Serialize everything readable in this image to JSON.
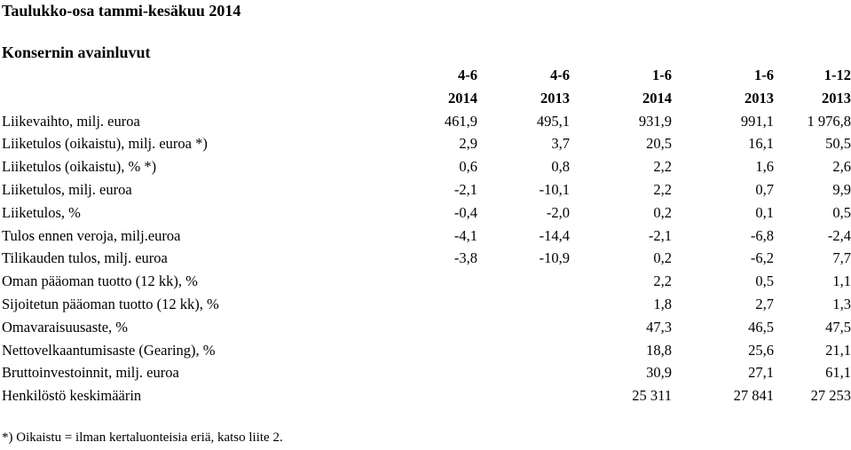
{
  "title": "Taulukko-osa tammi-kesäkuu 2014",
  "section_title": "Konsernin avainluvut",
  "table": {
    "header_row1": [
      "4-6",
      "4-6",
      "1-6",
      "1-6",
      "1-12"
    ],
    "header_row2": [
      "2014",
      "2013",
      "2014",
      "2013",
      "2013"
    ],
    "rows": [
      {
        "label": "Liikevaihto, milj. euroa",
        "values": [
          "461,9",
          "495,1",
          "931,9",
          "991,1",
          "1 976,8"
        ]
      },
      {
        "label": "Liiketulos (oikaistu), milj. euroa *)",
        "values": [
          "2,9",
          "3,7",
          "20,5",
          "16,1",
          "50,5"
        ]
      },
      {
        "label": "Liiketulos (oikaistu), % *)",
        "values": [
          "0,6",
          "0,8",
          "2,2",
          "1,6",
          "2,6"
        ]
      },
      {
        "label": "Liiketulos, milj. euroa",
        "values": [
          "-2,1",
          "-10,1",
          "2,2",
          "0,7",
          "9,9"
        ]
      },
      {
        "label": "Liiketulos, %",
        "values": [
          "-0,4",
          "-2,0",
          "0,2",
          "0,1",
          "0,5"
        ]
      },
      {
        "label": "Tulos ennen veroja, milj.euroa",
        "values": [
          "-4,1",
          "-14,4",
          "-2,1",
          "-6,8",
          "-2,4"
        ]
      },
      {
        "label": "Tilikauden tulos, milj. euroa",
        "values": [
          "-3,8",
          "-10,9",
          "0,2",
          "-6,2",
          "7,7"
        ]
      },
      {
        "label": "Oman pääoman tuotto (12 kk), %",
        "values": [
          "",
          "",
          "2,2",
          "0,5",
          "1,1"
        ]
      },
      {
        "label": "Sijoitetun pääoman tuotto (12 kk), %",
        "values": [
          "",
          "",
          "1,8",
          "2,7",
          "1,3"
        ]
      },
      {
        "label": "Omavaraisuusaste, %",
        "values": [
          "",
          "",
          "47,3",
          "46,5",
          "47,5"
        ]
      },
      {
        "label": "Nettovelkaantumisaste (Gearing), %",
        "values": [
          "",
          "",
          "18,8",
          "25,6",
          "21,1"
        ]
      },
      {
        "label": "Bruttoinvestoinnit, milj. euroa",
        "values": [
          "",
          "",
          "30,9",
          "27,1",
          "61,1"
        ]
      },
      {
        "label": "Henkilöstö keskimäärin",
        "values": [
          "",
          "",
          "25 311",
          "27 841",
          "27 253"
        ]
      }
    ]
  },
  "footnote": "*) Oikaistu = ilman kertaluonteisia eriä, katso liite 2."
}
